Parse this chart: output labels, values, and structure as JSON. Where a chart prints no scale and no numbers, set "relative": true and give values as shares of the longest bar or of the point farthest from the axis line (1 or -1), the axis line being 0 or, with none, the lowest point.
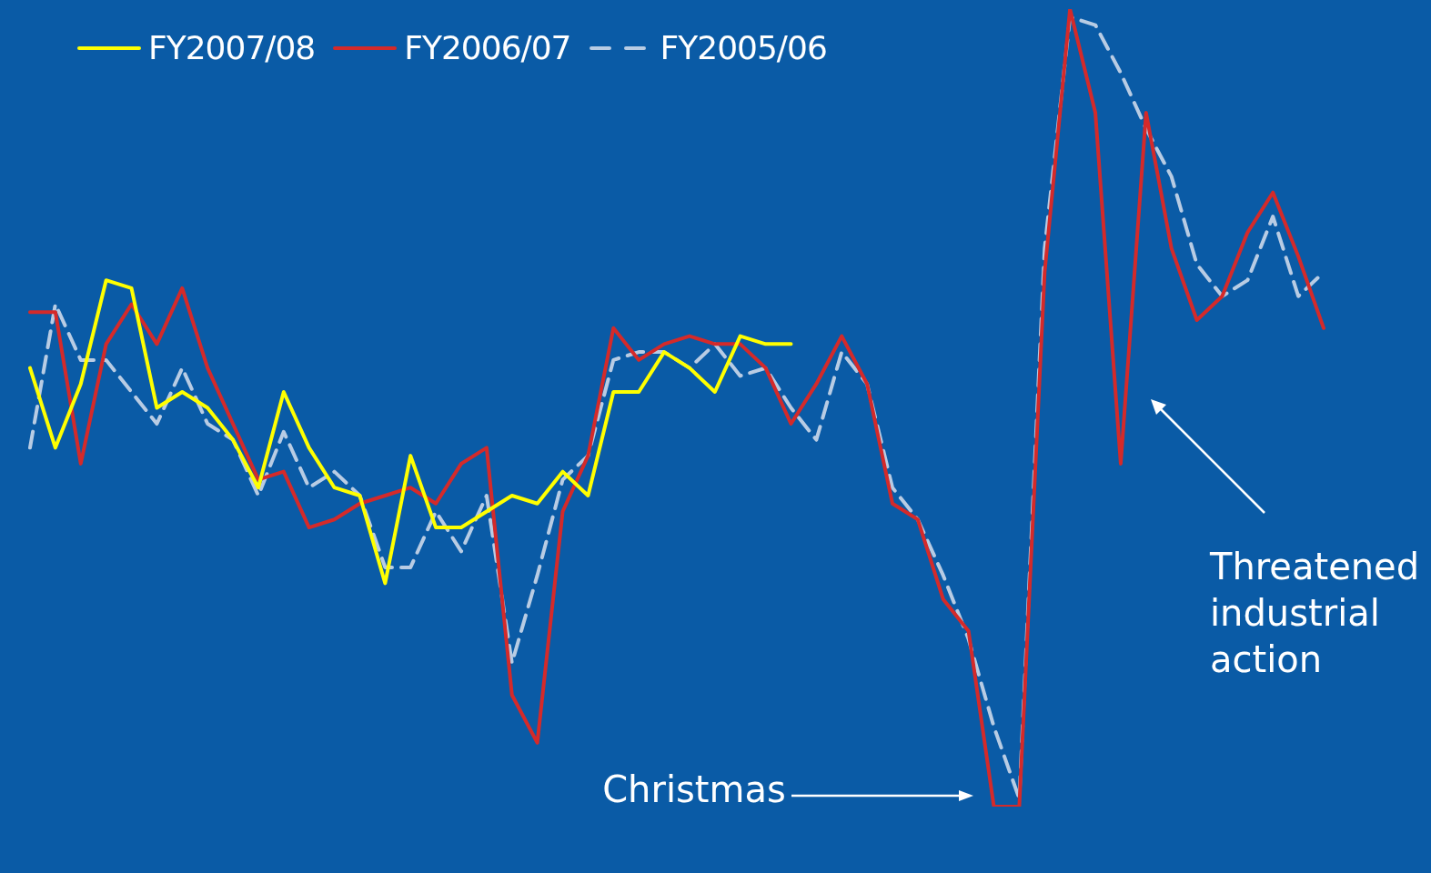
{
  "chart_data": {
    "type": "line",
    "relative": true,
    "legend": "top left",
    "marker": "none",
    "categories": [
      null,
      null,
      null,
      null,
      null,
      null,
      null,
      null,
      null,
      null,
      null,
      null,
      null,
      null,
      null,
      null,
      null,
      null,
      null,
      null,
      null,
      null,
      null,
      null,
      null,
      null,
      null,
      null,
      null,
      null,
      null,
      null,
      null,
      null,
      null,
      null,
      null,
      null,
      null,
      null,
      null,
      null,
      null,
      null,
      null,
      null,
      null,
      null,
      null,
      null,
      null,
      null
    ],
    "series": [
      {
        "name": "FY2007/08",
        "color": "#ffff00",
        "line_style": "solid",
        "values": [
          0.55,
          0.45,
          0.53,
          0.66,
          0.65,
          0.5,
          0.52,
          0.5,
          0.46,
          0.4,
          0.52,
          0.45,
          0.4,
          0.39,
          0.28,
          0.44,
          0.35,
          0.35,
          0.37,
          0.39,
          0.38,
          0.42,
          0.39,
          0.52,
          0.52,
          0.57,
          0.55,
          0.52,
          0.59,
          0.58,
          0.58,
          null,
          null,
          null,
          null,
          null,
          null,
          null,
          null,
          null,
          null,
          null,
          null,
          null,
          null,
          null,
          null,
          null,
          null,
          null,
          null,
          null
        ]
      },
      {
        "name": "FY2006/07",
        "color": "#d42a2a",
        "line_style": "solid",
        "values": [
          0.62,
          0.62,
          0.43,
          0.58,
          0.63,
          0.58,
          0.65,
          0.55,
          0.48,
          0.41,
          0.42,
          0.35,
          0.36,
          0.38,
          0.39,
          0.4,
          0.38,
          0.43,
          0.45,
          0.14,
          0.08,
          0.37,
          0.44,
          0.6,
          0.56,
          0.58,
          0.59,
          0.58,
          0.58,
          0.55,
          0.48,
          0.53,
          0.59,
          0.53,
          0.38,
          0.36,
          0.26,
          0.22,
          0.0,
          0,
          0.67,
          1,
          0.87,
          0.43,
          0.87,
          0.7,
          0.61,
          0.64,
          0.72,
          0.77,
          0.69,
          0.6
        ]
      },
      {
        "name": "FY2005/06",
        "color": "#b8cce4",
        "line_style": "dashed",
        "values": [
          0.45,
          0.63,
          0.56,
          0.56,
          0.52,
          0.48,
          0.55,
          0.48,
          0.46,
          0.39,
          0.47,
          0.4,
          0.42,
          0.39,
          0.3,
          0.3,
          0.37,
          0.32,
          0.39,
          0.18,
          0.29,
          0.41,
          0.44,
          0.56,
          0.57,
          0.57,
          0.55,
          0.58,
          0.54,
          0.55,
          0.5,
          0.46,
          0.57,
          0.53,
          0.4,
          0.36,
          0.29,
          0.21,
          0.1,
          0.01,
          0.7,
          0.99,
          0.98,
          0.92,
          0.85,
          0.79,
          0.68,
          0.64,
          0.66,
          0.74,
          0.64,
          0.67
        ]
      }
    ],
    "annotations": [
      "Christmas",
      "Threatened industrial action"
    ]
  }
}
